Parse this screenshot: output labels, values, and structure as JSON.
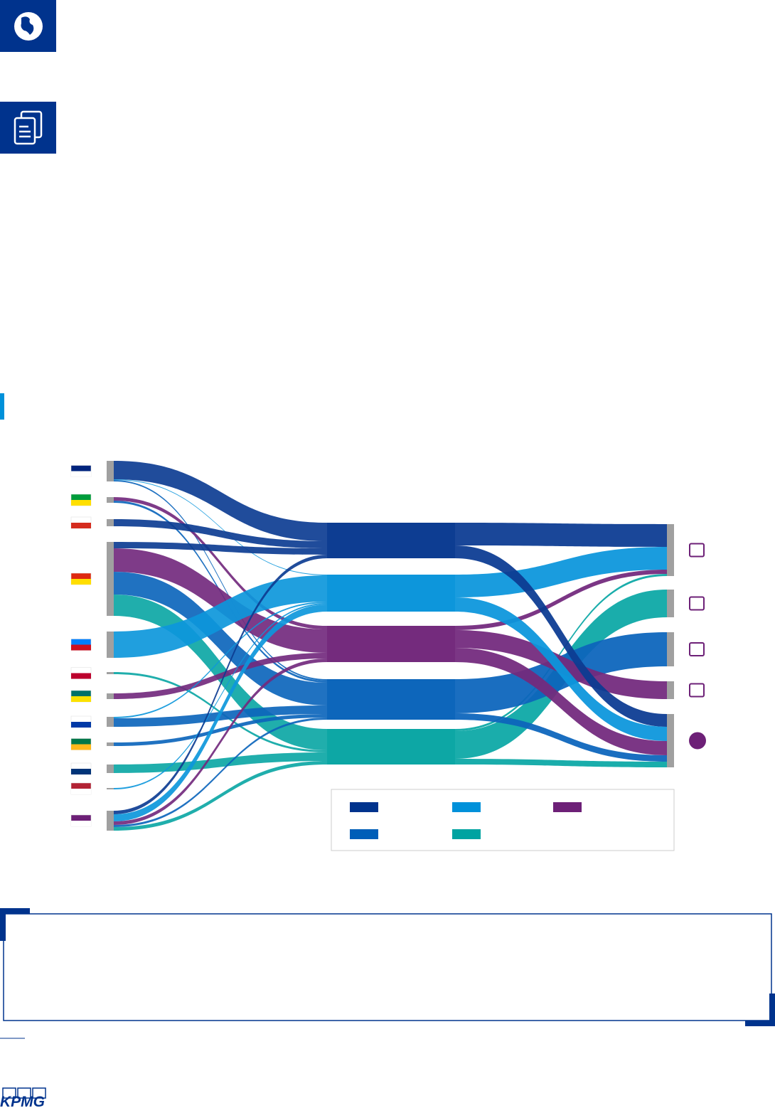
{
  "logo": "KPMG",
  "chart_data": {
    "type": "sankey",
    "minerals": [
      {
        "color": "#00338d"
      },
      {
        "color": "#0091da"
      },
      {
        "color": "#6d2077"
      },
      {
        "color": "#005eb8"
      },
      {
        "color": "#00a3a1"
      }
    ],
    "sources": [
      {
        "values": [
          26,
          1,
          0,
          2,
          0
        ]
      },
      {
        "values": [
          0,
          0,
          5,
          3,
          0
        ]
      },
      {
        "values": [
          10,
          0,
          0,
          0,
          0
        ]
      },
      {
        "values": [
          9,
          0,
          33,
          32,
          30
        ]
      },
      {
        "values": [
          0,
          37,
          0,
          0,
          0
        ]
      },
      {
        "values": [
          0,
          0,
          0,
          0,
          3
        ]
      },
      {
        "values": [
          0,
          0,
          8,
          0,
          0
        ]
      },
      {
        "values": [
          0,
          2,
          0,
          12,
          0
        ]
      },
      {
        "values": [
          0,
          0,
          0,
          5,
          0
        ]
      },
      {
        "values": [
          0,
          0,
          0,
          0,
          12
        ]
      },
      {
        "values": [
          0,
          2,
          0,
          0,
          0
        ]
      },
      {
        "values": [
          5,
          10,
          5,
          3,
          5
        ]
      }
    ],
    "applications": [
      {
        "values": [
          32,
          32,
          6,
          0,
          3
        ]
      },
      {
        "values": [
          0,
          0,
          0,
          0,
          39
        ]
      },
      {
        "values": [
          0,
          0,
          0,
          48,
          0
        ]
      },
      {
        "values": [
          0,
          0,
          25,
          0,
          0
        ]
      },
      {
        "values": [
          18,
          20,
          20,
          9,
          8
        ]
      }
    ]
  }
}
